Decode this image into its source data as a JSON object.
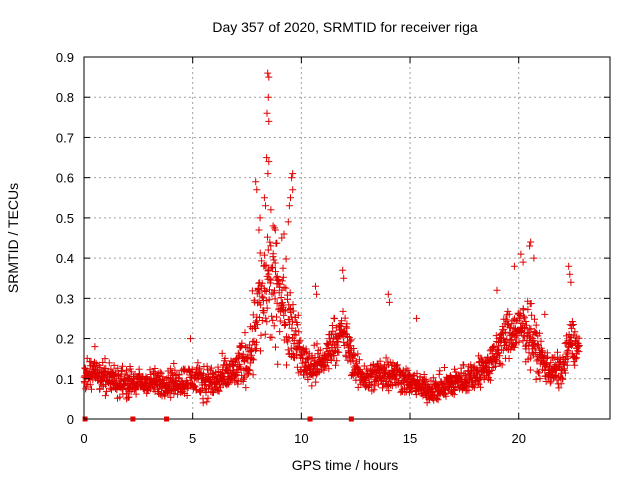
{
  "chart_data": {
    "type": "scatter",
    "title": "Day 357 of 2020, SRMTID for receiver riga",
    "xlabel": "GPS time / hours",
    "ylabel": "SRMTID / TECUs",
    "xlim": [
      0,
      24.2
    ],
    "ylim": [
      0,
      0.9
    ],
    "x_ticks": [
      0,
      5,
      10,
      15,
      20
    ],
    "x_tick_labels": [
      "0",
      "5",
      "10",
      "15",
      "20"
    ],
    "y_ticks": [
      0,
      0.1,
      0.2,
      0.3,
      0.4,
      0.5,
      0.6,
      0.7,
      0.8,
      0.9
    ],
    "y_tick_labels": [
      "0",
      "0.1",
      "0.2",
      "0.3",
      "0.4",
      "0.5",
      "0.6",
      "0.7",
      "0.8",
      "0.9"
    ],
    "grid": true,
    "marker": "+",
    "colors": {
      "points": "#e00000",
      "grid": "#a0a0a0",
      "axes": "#000000"
    },
    "baseline_markers": [
      {
        "x": 0.05,
        "y": 0.0
      },
      {
        "x": 2.25,
        "y": 0.0
      },
      {
        "x": 3.8,
        "y": 0.0
      },
      {
        "x": 10.4,
        "y": 0.0
      },
      {
        "x": 12.3,
        "y": 0.0
      }
    ],
    "envelope": [
      {
        "x": 0.0,
        "base": 0.1,
        "spread": 0.04
      },
      {
        "x": 0.4,
        "base": 0.12,
        "spread": 0.05
      },
      {
        "x": 1.0,
        "base": 0.1,
        "spread": 0.05
      },
      {
        "x": 2.0,
        "base": 0.09,
        "spread": 0.05
      },
      {
        "x": 3.0,
        "base": 0.09,
        "spread": 0.04
      },
      {
        "x": 4.0,
        "base": 0.09,
        "spread": 0.05
      },
      {
        "x": 5.0,
        "base": 0.1,
        "spread": 0.05
      },
      {
        "x": 6.0,
        "base": 0.09,
        "spread": 0.06
      },
      {
        "x": 7.0,
        "base": 0.12,
        "spread": 0.06
      },
      {
        "x": 7.6,
        "base": 0.16,
        "spread": 0.1
      },
      {
        "x": 8.0,
        "base": 0.28,
        "spread": 0.18
      },
      {
        "x": 8.5,
        "base": 0.33,
        "spread": 0.22
      },
      {
        "x": 9.0,
        "base": 0.3,
        "spread": 0.16
      },
      {
        "x": 9.5,
        "base": 0.25,
        "spread": 0.14
      },
      {
        "x": 10.0,
        "base": 0.15,
        "spread": 0.07
      },
      {
        "x": 10.5,
        "base": 0.13,
        "spread": 0.06
      },
      {
        "x": 11.0,
        "base": 0.14,
        "spread": 0.06
      },
      {
        "x": 11.5,
        "base": 0.2,
        "spread": 0.07
      },
      {
        "x": 12.0,
        "base": 0.21,
        "spread": 0.08
      },
      {
        "x": 12.5,
        "base": 0.12,
        "spread": 0.05
      },
      {
        "x": 13.0,
        "base": 0.1,
        "spread": 0.05
      },
      {
        "x": 14.0,
        "base": 0.12,
        "spread": 0.06
      },
      {
        "x": 15.0,
        "base": 0.09,
        "spread": 0.04
      },
      {
        "x": 16.0,
        "base": 0.07,
        "spread": 0.04
      },
      {
        "x": 17.0,
        "base": 0.09,
        "spread": 0.05
      },
      {
        "x": 18.0,
        "base": 0.11,
        "spread": 0.05
      },
      {
        "x": 18.8,
        "base": 0.14,
        "spread": 0.06
      },
      {
        "x": 19.3,
        "base": 0.2,
        "spread": 0.08
      },
      {
        "x": 20.0,
        "base": 0.22,
        "spread": 0.08
      },
      {
        "x": 20.5,
        "base": 0.22,
        "spread": 0.1
      },
      {
        "x": 21.0,
        "base": 0.15,
        "spread": 0.07
      },
      {
        "x": 21.5,
        "base": 0.12,
        "spread": 0.05
      },
      {
        "x": 22.0,
        "base": 0.12,
        "spread": 0.06
      },
      {
        "x": 22.4,
        "base": 0.2,
        "spread": 0.07
      },
      {
        "x": 22.8,
        "base": 0.17,
        "spread": 0.06
      }
    ],
    "outliers": [
      {
        "x": 8.45,
        "y": 0.86
      },
      {
        "x": 8.5,
        "y": 0.85
      },
      {
        "x": 8.48,
        "y": 0.8
      },
      {
        "x": 8.42,
        "y": 0.76
      },
      {
        "x": 8.5,
        "y": 0.74
      },
      {
        "x": 8.4,
        "y": 0.65
      },
      {
        "x": 8.5,
        "y": 0.64
      },
      {
        "x": 8.46,
        "y": 0.61
      },
      {
        "x": 7.9,
        "y": 0.59
      },
      {
        "x": 7.95,
        "y": 0.57
      },
      {
        "x": 8.3,
        "y": 0.55
      },
      {
        "x": 8.35,
        "y": 0.53
      },
      {
        "x": 8.6,
        "y": 0.52
      },
      {
        "x": 9.6,
        "y": 0.61
      },
      {
        "x": 9.55,
        "y": 0.6
      },
      {
        "x": 9.6,
        "y": 0.57
      },
      {
        "x": 9.5,
        "y": 0.55
      },
      {
        "x": 9.45,
        "y": 0.53
      },
      {
        "x": 9.4,
        "y": 0.49
      },
      {
        "x": 9.2,
        "y": 0.46
      },
      {
        "x": 9.1,
        "y": 0.45
      },
      {
        "x": 8.8,
        "y": 0.47
      },
      {
        "x": 8.7,
        "y": 0.48
      },
      {
        "x": 8.1,
        "y": 0.5
      },
      {
        "x": 8.05,
        "y": 0.47
      },
      {
        "x": 20.55,
        "y": 0.44
      },
      {
        "x": 20.5,
        "y": 0.43
      },
      {
        "x": 20.1,
        "y": 0.41
      },
      {
        "x": 20.2,
        "y": 0.39
      },
      {
        "x": 19.8,
        "y": 0.38
      },
      {
        "x": 20.7,
        "y": 0.4
      },
      {
        "x": 22.3,
        "y": 0.38
      },
      {
        "x": 22.35,
        "y": 0.36
      },
      {
        "x": 22.4,
        "y": 0.34
      },
      {
        "x": 11.9,
        "y": 0.37
      },
      {
        "x": 11.95,
        "y": 0.35
      },
      {
        "x": 14.0,
        "y": 0.31
      },
      {
        "x": 14.05,
        "y": 0.29
      },
      {
        "x": 15.3,
        "y": 0.25
      },
      {
        "x": 10.65,
        "y": 0.33
      },
      {
        "x": 10.7,
        "y": 0.31
      },
      {
        "x": 19.0,
        "y": 0.32
      },
      {
        "x": 21.2,
        "y": 0.26
      },
      {
        "x": 4.9,
        "y": 0.2
      },
      {
        "x": 0.5,
        "y": 0.18
      }
    ]
  }
}
